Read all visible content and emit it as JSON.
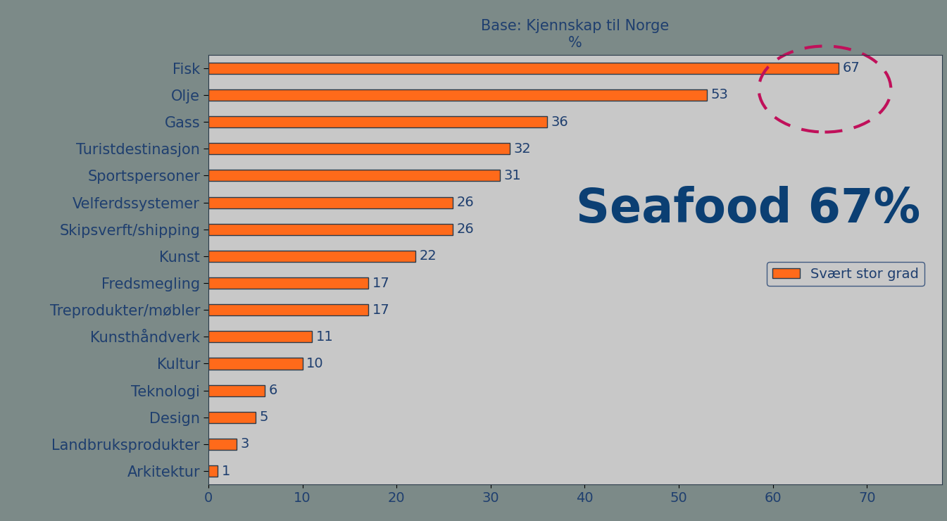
{
  "chart_data": {
    "type": "bar",
    "orientation": "horizontal",
    "title": "Base: Kjennskap til Norge",
    "subtitle": "%",
    "annotation": "Seafood 67%",
    "categories": [
      "Fisk",
      "Olje",
      "Gass",
      "Turistdestinasjon",
      "Sportspersoner",
      "Velferdssystemer",
      "Skipsverft/shipping",
      "Kunst",
      "Fredsmegling",
      "Treprodukter/møbler",
      "Kunsthåndverk",
      "Kultur",
      "Teknologi",
      "Design",
      "Landbruksprodukter",
      "Arkitektur"
    ],
    "series": [
      {
        "name": "Svært stor grad",
        "color": "#ff6a1a",
        "values": [
          67,
          53,
          36,
          32,
          31,
          26,
          26,
          22,
          17,
          17,
          11,
          10,
          6,
          5,
          3,
          1
        ]
      }
    ],
    "xlim": [
      0,
      78
    ],
    "xticks": [
      0,
      10,
      20,
      30,
      40,
      50,
      60,
      70
    ],
    "data_labels": true,
    "grid": false,
    "legend": "center right"
  }
}
